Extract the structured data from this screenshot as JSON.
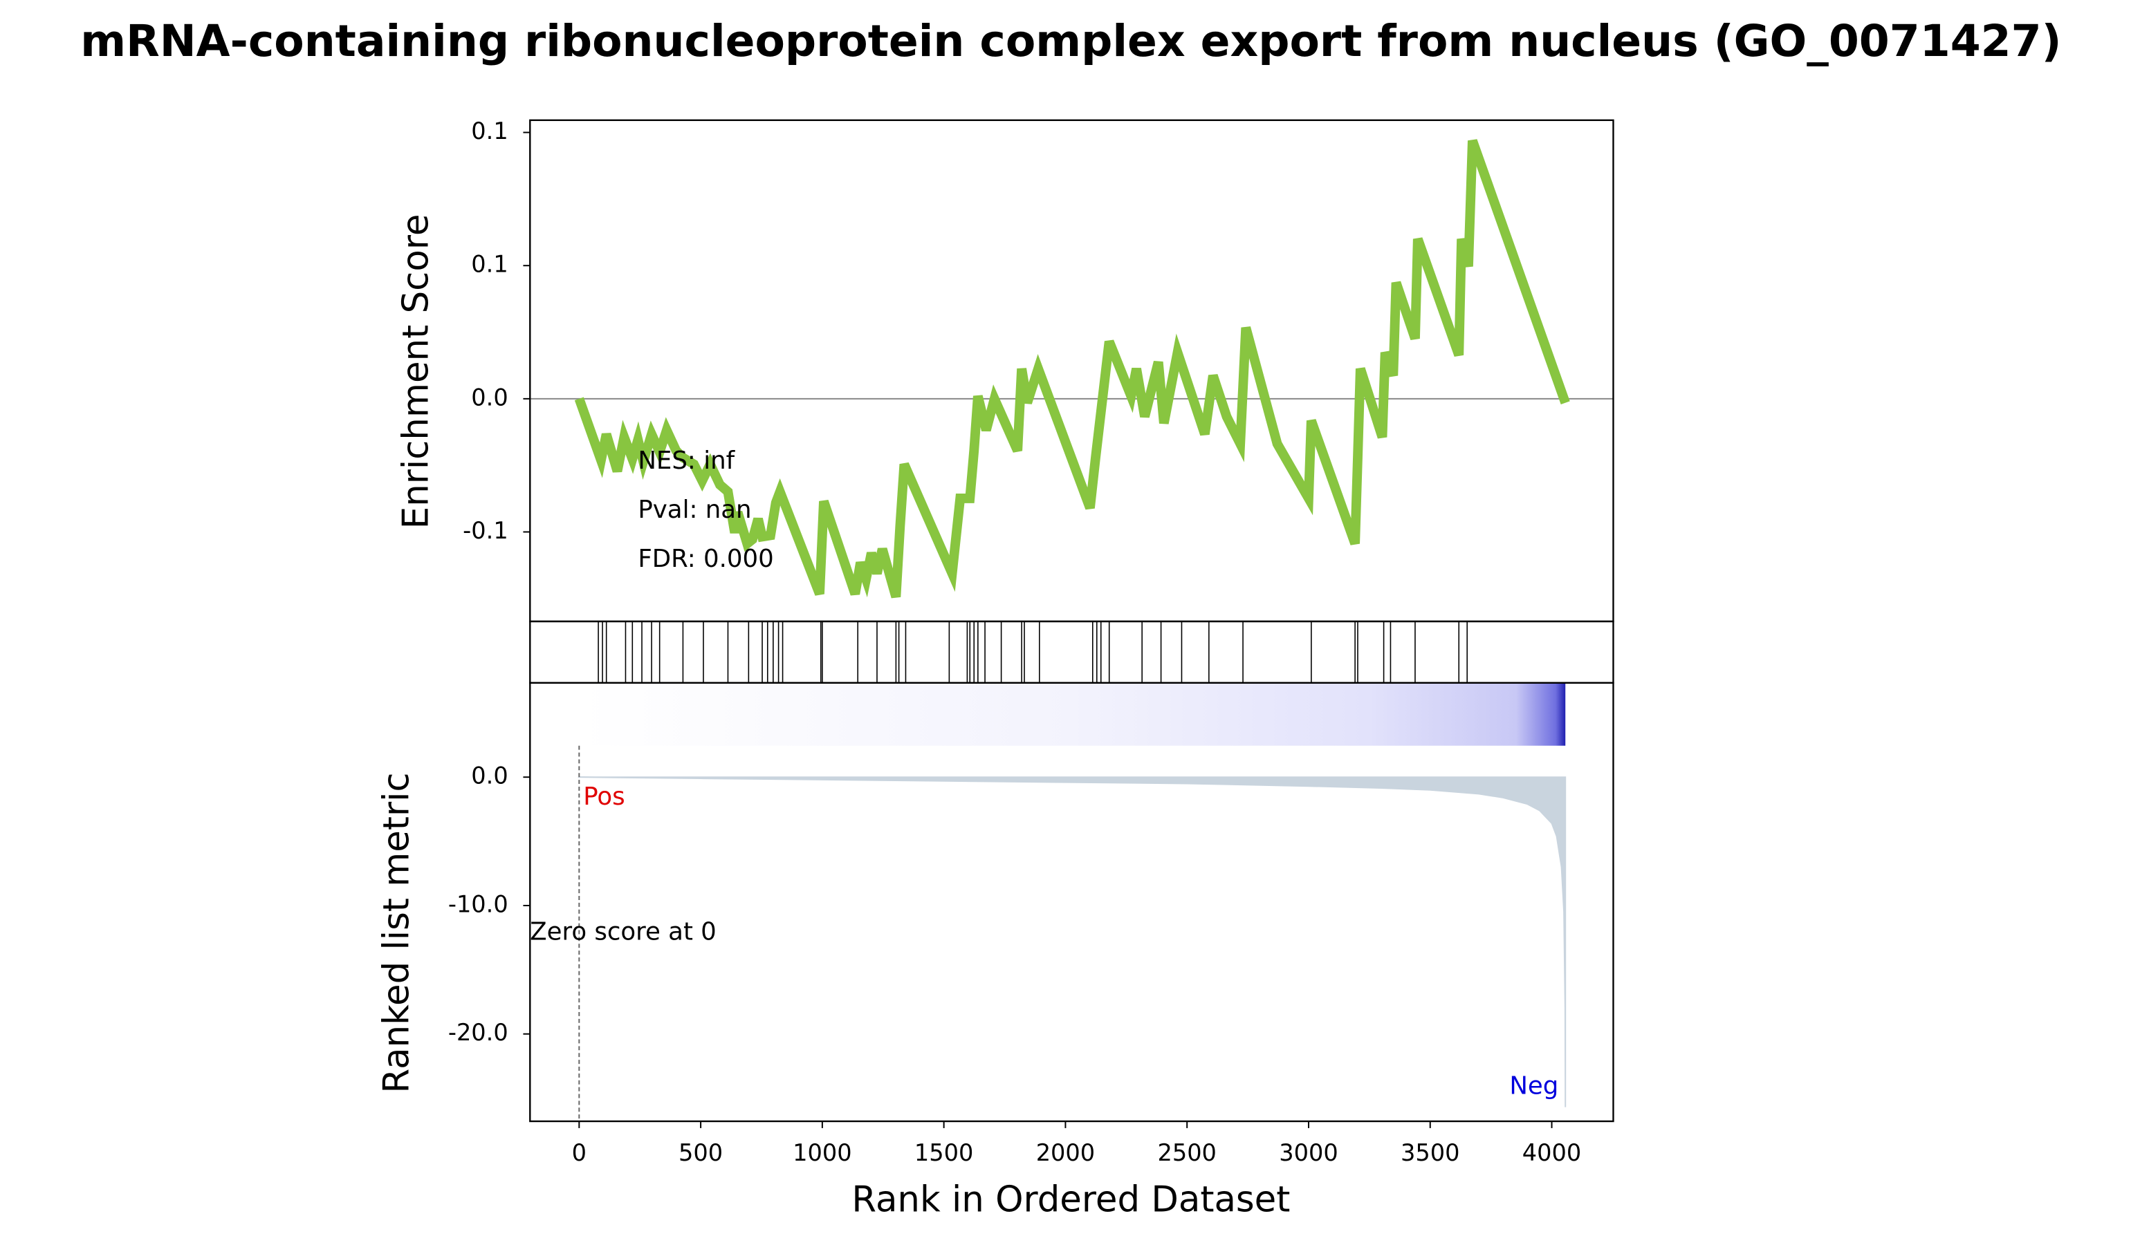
{
  "chart_data": [
    {
      "type": "line",
      "title": "mRNA-containing ribonucleoprotein complex export from nucleus (GO_0071427)",
      "ylabel": "Enrichment Score",
      "color": "#88c540",
      "x": [
        0,
        90,
        112,
        157,
        185,
        219,
        242,
        264,
        298,
        331,
        360,
        399,
        427,
        472,
        506,
        539,
        579,
        612,
        640,
        652,
        691,
        713,
        736,
        753,
        787,
        809,
        826,
        989,
        1006,
        1135,
        1157,
        1180,
        1202,
        1225,
        1247,
        1303,
        1320,
        1337,
        1534,
        1567,
        1607,
        1624,
        1640,
        1674,
        1708,
        1803,
        1820,
        1843,
        1888,
        2101,
        2124,
        2180,
        2270,
        2292,
        2326,
        2382,
        2405,
        2461,
        2573,
        2607,
        2663,
        2719,
        2742,
        2871,
        3000,
        3011,
        3191,
        3202,
        3213,
        3303,
        3315,
        3348,
        3360,
        3438,
        3449,
        3618,
        3629,
        3657,
        3674,
        4056
      ],
      "values": [
        0,
        -0.0231,
        -0.0133,
        -0.0272,
        -0.0144,
        -0.0226,
        -0.0154,
        -0.0236,
        -0.0133,
        -0.02,
        -0.0118,
        -0.0195,
        -0.0221,
        -0.0246,
        -0.0308,
        -0.0246,
        -0.0323,
        -0.0349,
        -0.0503,
        -0.0426,
        -0.0544,
        -0.0528,
        -0.0451,
        -0.0518,
        -0.0513,
        -0.039,
        -0.0349,
        -0.0733,
        -0.0385,
        -0.0733,
        -0.0615,
        -0.0677,
        -0.0579,
        -0.0656,
        -0.0564,
        -0.0744,
        -0.0477,
        -0.0246,
        -0.0656,
        -0.0374,
        -0.0374,
        -0.0195,
        0.001,
        -0.0118,
        0,
        -0.0195,
        0.0113,
        -0.0015,
        0.0113,
        -0.041,
        -0.0221,
        0.0215,
        0.001,
        0.0113,
        -0.0067,
        0.0138,
        -0.0092,
        0.0174,
        -0.0133,
        0.0087,
        -0.0067,
        -0.0169,
        0.0267,
        -0.0169,
        -0.0374,
        -0.0082,
        -0.0544,
        -0.0221,
        0.0113,
        -0.0144,
        0.0174,
        0.0087,
        0.0436,
        0.0226,
        0.06,
        0.0164,
        0.06,
        0.0497,
        0.0969,
        -0.0015
      ],
      "xlim": [
        -202,
        4253
      ],
      "ylim": [
        -0.0836,
        0.1046
      ],
      "yticks": [
        {
          "value": 0.1,
          "label": "0.1"
        },
        {
          "value": 0.05,
          "label": "0.1"
        },
        {
          "value": 0,
          "label": "0.0"
        },
        {
          "value": -0.05,
          "label": "-0.1"
        }
      ],
      "annotations": [
        "NES: inf",
        "Pval: nan",
        "FDR: 0.000"
      ]
    },
    {
      "type": "rug",
      "color": "#000000",
      "x": [
        79,
        96,
        112,
        191,
        219,
        258,
        298,
        331,
        427,
        511,
        612,
        697,
        753,
        775,
        798,
        820,
        837,
        994,
        1000,
        1146,
        1225,
        1303,
        1315,
        1343,
        1522,
        1596,
        1607,
        1624,
        1640,
        1669,
        1736,
        1820,
        1831,
        1893,
        2112,
        2129,
        2146,
        2180,
        2315,
        2393,
        2478,
        2590,
        2730,
        3011,
        3191,
        3202,
        3309,
        3337,
        3438,
        3618,
        3652
      ],
      "xlim": [
        -202,
        4253
      ]
    },
    {
      "type": "area",
      "xlabel": "Rank in Ordered Dataset",
      "ylabel": "Ranked list metric",
      "color": "#c9d4de",
      "x": [
        0,
        500,
        1000,
        1500,
        2000,
        2500,
        3000,
        3300,
        3500,
        3700,
        3800,
        3900,
        3950,
        4000,
        4020,
        4040,
        4050,
        4055,
        4056
      ],
      "values": [
        0,
        -0.1,
        -0.2,
        -0.3,
        -0.4,
        -0.5,
        -0.7,
        -0.85,
        -1.0,
        -1.3,
        -1.6,
        -2.1,
        -2.6,
        -3.6,
        -4.6,
        -7.0,
        -10.5,
        -18,
        -25.7
      ],
      "xlim": [
        -202,
        4253
      ],
      "xticks": [
        0,
        500,
        1000,
        1500,
        2000,
        2500,
        3000,
        3500,
        4000
      ],
      "ylim": [
        -26.8,
        7.34
      ],
      "yticks": [
        {
          "value": 0,
          "label": "0.0"
        },
        {
          "value": -10,
          "label": "-10.0"
        },
        {
          "value": -20,
          "label": "-20.0"
        }
      ],
      "zero_x": 0,
      "zero_label": "Zero score at 0",
      "pos_label": "Pos",
      "neg_label": "Neg"
    }
  ]
}
